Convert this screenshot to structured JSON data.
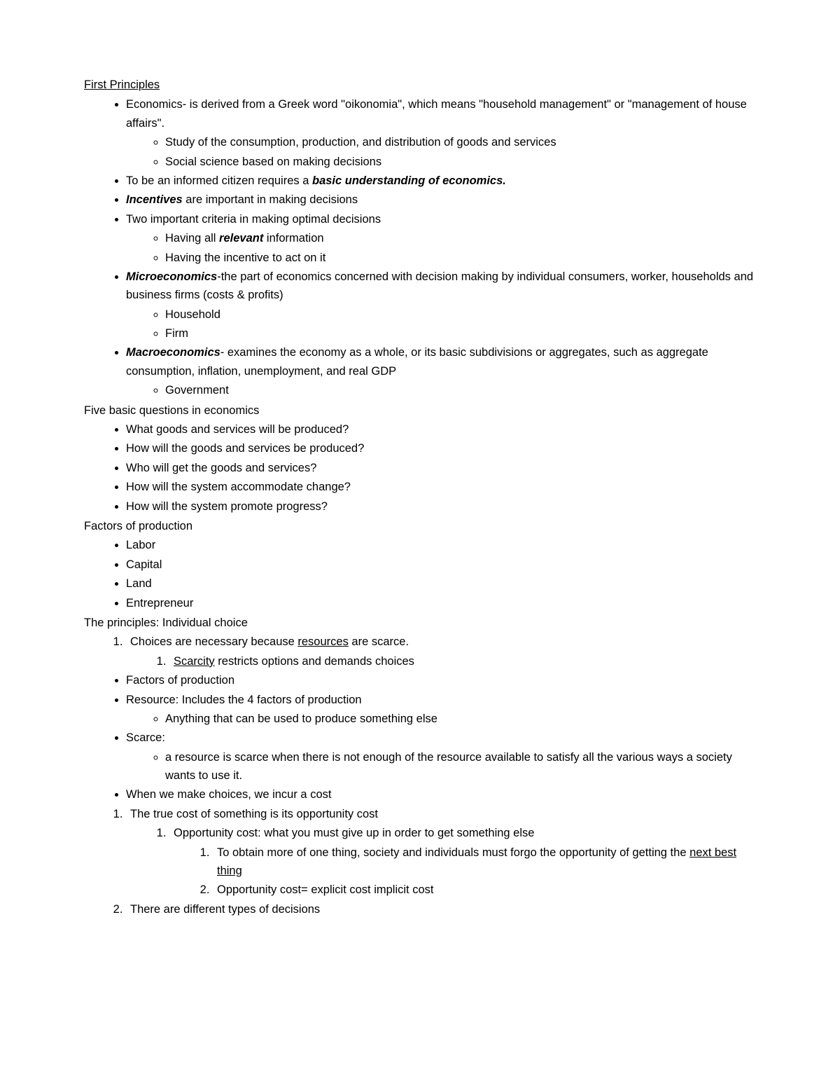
{
  "title": "First Principles",
  "sections": {
    "s1": {
      "items": [
        {
          "prefix": "Economics- is derived from a Greek word \"oikonomia\", which means \"household management\" or \"management of house affairs\".",
          "sub": [
            "Study of the consumption, production, and distribution of goods and services",
            "Social science based on making decisions"
          ]
        },
        {
          "pre": "To be an informed citizen requires a ",
          "bold": "basic understanding of economics."
        },
        {
          "bold": "Incentives",
          "post": " are important in making decisions"
        },
        {
          "prefix": "Two important criteria in making optimal decisions",
          "sub_rich": [
            {
              "pre": "Having all ",
              "bold": "relevant",
              "post": " information"
            },
            {
              "text": "Having the incentive to act on it"
            }
          ]
        },
        {
          "bold": "Microeconomics",
          "post": "-the part of economics concerned with decision making by individual consumers, worker, households and business firms (costs & profits)",
          "sub": [
            "Household",
            "Firm"
          ]
        },
        {
          "bold": "Macroeconomics",
          "post": "- examines the economy as a whole, or its basic subdivisions or aggregates, such as aggregate consumption, inflation, unemployment, and real GDP",
          "sub": [
            "Government"
          ]
        }
      ]
    },
    "s2": {
      "heading": "Five basic questions in economics",
      "items": [
        "What goods and services will be produced?",
        "How will the goods and services be produced?",
        "Who will get the goods and services?",
        "How will the system accommodate change?",
        "How will the system promote progress?"
      ]
    },
    "s3": {
      "heading": "Factors of production",
      "items": [
        "Labor",
        "Capital",
        "Land",
        "Entrepreneur"
      ]
    },
    "s4": {
      "heading": "The principles: Individual choice",
      "item1": {
        "pre": "Choices are necessary because ",
        "u": "resources",
        "post": " are scarce.",
        "sub": {
          "u": "Scarcity",
          "post": " restricts options and demands choices"
        }
      },
      "b1": "Factors of production",
      "b2": {
        "text": "Resource: Includes the 4 factors of production",
        "sub": "Anything that can be used to produce something else"
      },
      "b3": {
        "text": "Scarce:",
        "sub": "a resource is scarce when there is not enough of the resource available to satisfy all the various ways a society wants to use it."
      },
      "b4": "When we make choices, we incur a cost",
      "n1": {
        "text": "The true cost of something is its opportunity cost",
        "s1": {
          "text": "Opportunity cost: what you must give up in order to get something else",
          "ss1": {
            "pre": "To obtain more of one thing, society and individuals must forgo the opportunity of getting the ",
            "u": "next best thing"
          },
          "ss2": "Opportunity cost= explicit cost implicit cost"
        }
      },
      "n2": "There are different types of decisions"
    }
  }
}
